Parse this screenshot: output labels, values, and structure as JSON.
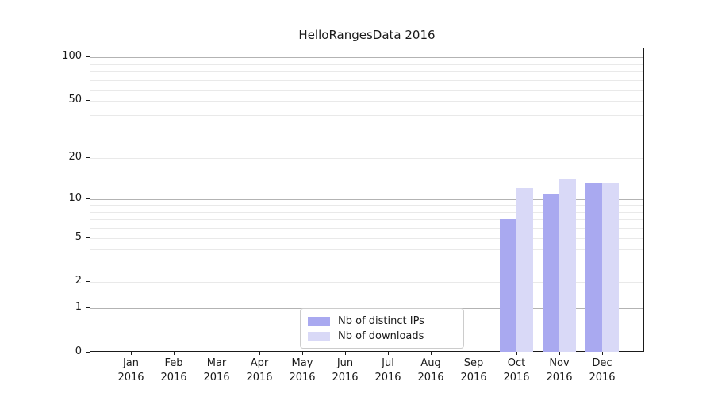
{
  "title": "HelloRangesData 2016",
  "chart_data": {
    "type": "bar",
    "title": "HelloRangesData 2016",
    "y_scale": "log1p",
    "ylim": [
      0,
      115
    ],
    "grid": true,
    "legend_position": "lower center",
    "categories": [
      "Jan",
      "Feb",
      "Mar",
      "Apr",
      "May",
      "Jun",
      "Jul",
      "Aug",
      "Sep",
      "Oct",
      "Nov",
      "Dec"
    ],
    "category_year": "2016",
    "series": [
      {
        "name": "Nb of distinct IPs",
        "color": "#a9a9f0",
        "values": [
          0,
          0,
          0,
          0,
          0,
          0,
          0,
          0,
          0,
          7,
          11,
          13
        ]
      },
      {
        "name": "Nb of downloads",
        "color": "#d9d9f7",
        "values": [
          0,
          0,
          0,
          0,
          0,
          0,
          0,
          0,
          0,
          12,
          14,
          13
        ]
      }
    ],
    "y_ticks": [
      0,
      1,
      2,
      5,
      10,
      20,
      50,
      100
    ],
    "y_major_gridlines": [
      1,
      10,
      100
    ],
    "y_minor_gridlines": [
      2,
      3,
      4,
      5,
      6,
      7,
      8,
      9,
      20,
      30,
      40,
      50,
      60,
      70,
      80,
      90
    ]
  },
  "colors": {
    "grid_major": "#b3b3b3",
    "grid_minor": "#e9e9e9",
    "spine": "#1a1a1a",
    "text": "#1a1a1a",
    "legend_border": "#cccccc",
    "background": "#ffffff"
  }
}
